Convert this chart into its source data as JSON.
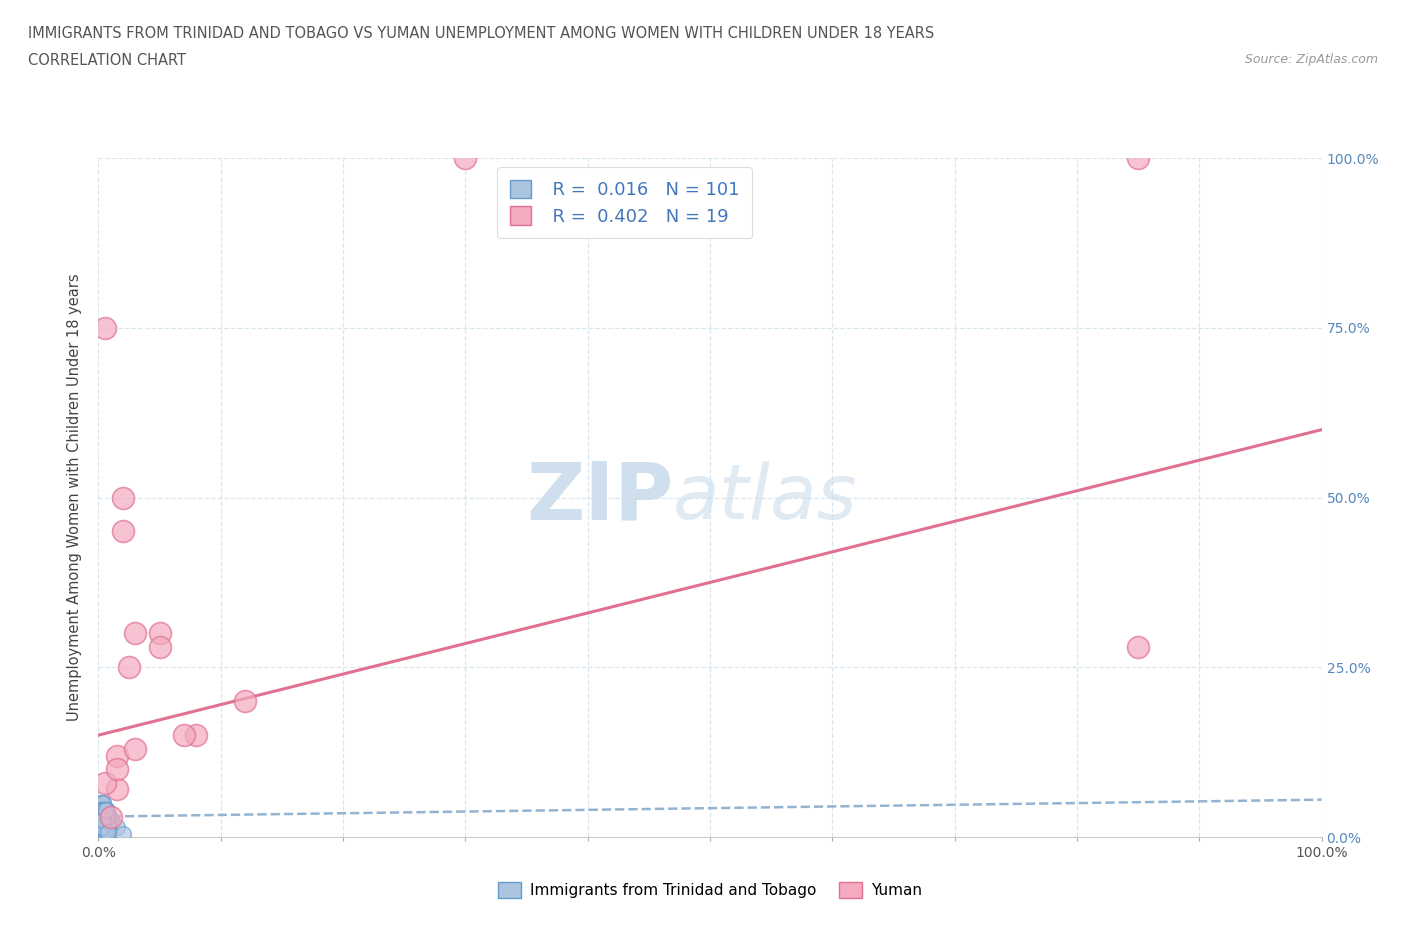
{
  "title_line1": "IMMIGRANTS FROM TRINIDAD AND TOBAGO VS YUMAN UNEMPLOYMENT AMONG WOMEN WITH CHILDREN UNDER 18 YEARS",
  "title_line2": "CORRELATION CHART",
  "source": "Source: ZipAtlas.com",
  "ylabel": "Unemployment Among Women with Children Under 18 years",
  "xlim": [
    0,
    100
  ],
  "ylim": [
    0,
    100
  ],
  "xticks": [
    0,
    10,
    20,
    30,
    40,
    50,
    60,
    70,
    80,
    90,
    100
  ],
  "yticks": [
    0,
    25,
    50,
    75,
    100
  ],
  "xticklabels": [
    "0.0%",
    "",
    "",
    "",
    "",
    "",
    "",
    "",
    "",
    "",
    "100.0%"
  ],
  "yticklabels_right": [
    "0.0%",
    "25.0%",
    "50.0%",
    "75.0%",
    "100.0%"
  ],
  "blue_R": 0.016,
  "blue_N": 101,
  "pink_R": 0.402,
  "pink_N": 19,
  "blue_color": "#aac4e0",
  "pink_color": "#f4aabf",
  "blue_edge": "#6699cc",
  "pink_edge": "#e07090",
  "blue_trend_color": "#88aacc",
  "pink_trend_color": "#e07090",
  "watermark_zip_color": "#c8daea",
  "watermark_atlas_color": "#c8daea",
  "legend_blue_label": "Immigrants from Trinidad and Tobago",
  "legend_pink_label": "Yuman",
  "blue_x": [
    0.1,
    0.2,
    0.15,
    0.3,
    0.4,
    0.5,
    0.2,
    0.3,
    0.6,
    0.8,
    1.0,
    0.2,
    0.4,
    0.7,
    0.1,
    0.3,
    0.5,
    0.9,
    0.3,
    0.4,
    0.1,
    0.15,
    0.2,
    0.6,
    0.7,
    1.0,
    0.4,
    0.3,
    0.2,
    0.25,
    1.5,
    0.4,
    0.5,
    0.8,
    0.2,
    0.3,
    0.5,
    0.7,
    0.15,
    0.3,
    0.4,
    0.6,
    0.7,
    0.2,
    0.3,
    0.5,
    0.8,
    0.25,
    0.4,
    0.15,
    2.0,
    0.4,
    0.6,
    0.2,
    0.3,
    0.5,
    0.7,
    0.25,
    0.4,
    0.6,
    0.1,
    0.2,
    0.3,
    0.4,
    0.6,
    0.25,
    0.4,
    0.5,
    0.7,
    0.2,
    0.3,
    0.4,
    0.6,
    0.7,
    0.25,
    0.4,
    0.5,
    0.6,
    0.2,
    0.3,
    0.4,
    0.6,
    0.7,
    0.25,
    0.4,
    0.5,
    0.6,
    0.8,
    0.3,
    0.4,
    0.6,
    0.7,
    0.25,
    0.4,
    0.5,
    0.6,
    0.2,
    0.3,
    0.4,
    0.6,
    0.8
  ],
  "blue_y": [
    2.0,
    4.0,
    1.5,
    3.5,
    5.0,
    2.5,
    4.0,
    1.5,
    3.0,
    0.8,
    2.5,
    5.0,
    1.5,
    3.5,
    4.0,
    2.5,
    0.8,
    3.0,
    5.0,
    1.5,
    2.5,
    4.0,
    0.8,
    3.0,
    1.5,
    2.5,
    4.0,
    0.8,
    3.0,
    5.0,
    1.5,
    2.5,
    4.0,
    0.8,
    3.0,
    1.5,
    2.5,
    4.0,
    0.8,
    3.0,
    5.0,
    1.5,
    2.5,
    4.0,
    0.8,
    3.0,
    1.5,
    2.5,
    4.0,
    0.8,
    0.4,
    3.0,
    1.5,
    2.5,
    4.0,
    0.8,
    3.0,
    1.5,
    2.5,
    4.0,
    0.8,
    3.0,
    1.5,
    2.5,
    4.0,
    0.8,
    3.0,
    1.5,
    2.5,
    4.0,
    0.8,
    3.0,
    1.5,
    2.5,
    4.0,
    0.8,
    3.0,
    1.5,
    2.5,
    4.0,
    0.8,
    3.0,
    1.5,
    2.5,
    4.0,
    0.8,
    3.0,
    1.5,
    2.5,
    4.0,
    0.8,
    3.0,
    1.5,
    2.5,
    4.0,
    0.8,
    3.0,
    1.5,
    2.5,
    4.0,
    0.8
  ],
  "pink_x": [
    0.5,
    30.0,
    2.0,
    5.0,
    3.0,
    8.0,
    1.5,
    85.0,
    85.0,
    12.0,
    1.5,
    2.5,
    1.0,
    5.0,
    3.0,
    0.5,
    7.0,
    2.0,
    1.5
  ],
  "pink_y": [
    75.0,
    100.0,
    45.0,
    30.0,
    30.0,
    15.0,
    12.0,
    28.0,
    100.0,
    20.0,
    7.0,
    25.0,
    3.0,
    28.0,
    13.0,
    8.0,
    15.0,
    50.0,
    10.0
  ],
  "pink_trend_x0": 0,
  "pink_trend_y0": 15.0,
  "pink_trend_x1": 100,
  "pink_trend_y1": 60.0,
  "blue_trend_x0": 0,
  "blue_trend_y0": 3.0,
  "blue_trend_x1": 100,
  "blue_trend_y1": 5.5
}
